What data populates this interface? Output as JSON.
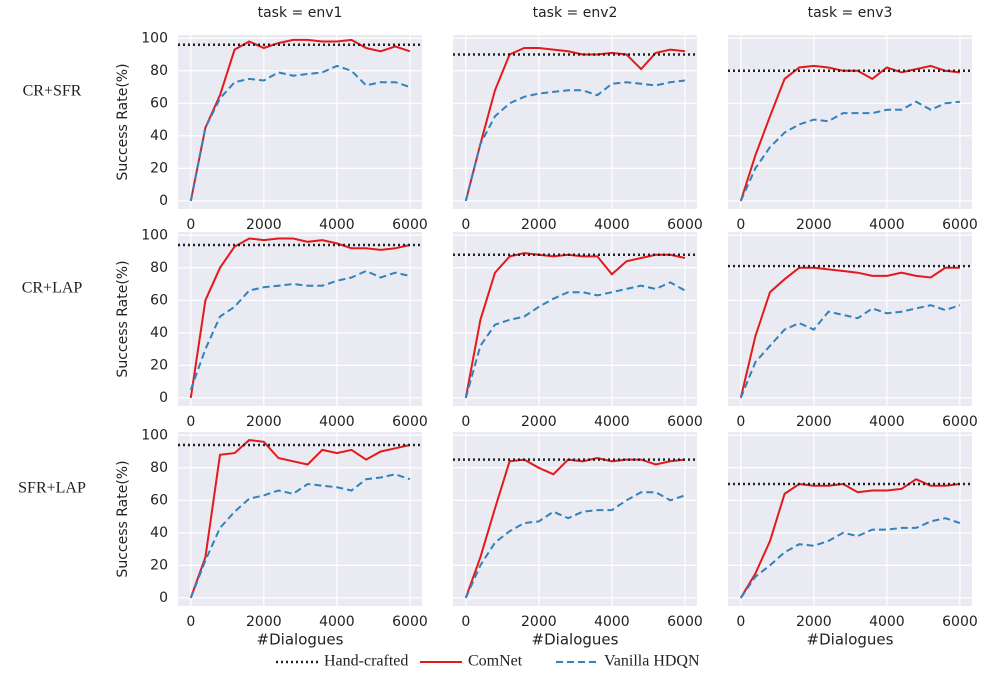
{
  "chart_data": [
    {
      "type": "line",
      "title": "task = env1",
      "row_label": "CR+SFR",
      "ylabel": "Success Rate(%)",
      "yticklabels": true,
      "x": [
        0,
        400,
        800,
        1200,
        1600,
        2000,
        2400,
        2800,
        3200,
        3600,
        4000,
        4400,
        4800,
        5200,
        5600,
        6000
      ],
      "hline": {
        "name": "Hand-crafted",
        "color": "#222222",
        "value": 96
      },
      "series": [
        {
          "name": "ComNet",
          "color": "#e31a1c",
          "linestyle": "solid",
          "values": [
            0,
            45,
            65,
            93,
            98,
            94,
            97,
            99,
            99,
            98,
            98,
            99,
            94,
            92,
            95,
            92
          ]
        },
        {
          "name": "Vanilla HDQN",
          "color": "#3182bd",
          "linestyle": "dashed",
          "values": [
            0,
            45,
            63,
            73,
            75,
            74,
            79,
            77,
            78,
            79,
            83,
            80,
            71,
            73,
            73,
            70
          ]
        }
      ],
      "xlim": [
        -350,
        6330
      ],
      "ylim": [
        -5,
        102
      ],
      "xticks": [
        0,
        2000,
        4000,
        6000
      ],
      "yticks": [
        0,
        20,
        40,
        60,
        80,
        100
      ],
      "grid": true
    },
    {
      "type": "line",
      "title": "task = env2",
      "yticklabels": false,
      "x": [
        0,
        400,
        800,
        1200,
        1600,
        2000,
        2400,
        2800,
        3200,
        3600,
        4000,
        4400,
        4800,
        5200,
        5600,
        6000
      ],
      "hline": {
        "name": "Hand-crafted",
        "color": "#222222",
        "value": 90
      },
      "series": [
        {
          "name": "ComNet",
          "color": "#e31a1c",
          "linestyle": "solid",
          "values": [
            0,
            35,
            68,
            90,
            94,
            94,
            93,
            92,
            90,
            90,
            91,
            90,
            81,
            91,
            93,
            92
          ]
        },
        {
          "name": "Vanilla HDQN",
          "color": "#3182bd",
          "linestyle": "dashed",
          "values": [
            0,
            35,
            52,
            60,
            64,
            66,
            67,
            68,
            68,
            65,
            72,
            73,
            72,
            71,
            73,
            74
          ]
        }
      ],
      "xlim": [
        -350,
        6330
      ],
      "ylim": [
        -5,
        102
      ],
      "xticks": [
        0,
        2000,
        4000,
        6000
      ],
      "yticks": [
        0,
        20,
        40,
        60,
        80,
        100
      ],
      "grid": true
    },
    {
      "type": "line",
      "title": "task = env3",
      "yticklabels": false,
      "x": [
        0,
        400,
        800,
        1200,
        1600,
        2000,
        2400,
        2800,
        3200,
        3600,
        4000,
        4400,
        4800,
        5200,
        5600,
        6000
      ],
      "hline": {
        "name": "Hand-crafted",
        "color": "#222222",
        "value": 80
      },
      "series": [
        {
          "name": "ComNet",
          "color": "#e31a1c",
          "linestyle": "solid",
          "values": [
            0,
            28,
            52,
            75,
            82,
            83,
            82,
            80,
            80,
            75,
            82,
            79,
            81,
            83,
            80,
            79
          ]
        },
        {
          "name": "Vanilla HDQN",
          "color": "#3182bd",
          "linestyle": "dashed",
          "values": [
            0,
            20,
            33,
            42,
            47,
            50,
            49,
            54,
            54,
            54,
            56,
            56,
            61,
            56,
            60,
            61
          ]
        }
      ],
      "xlim": [
        -350,
        6330
      ],
      "ylim": [
        -5,
        102
      ],
      "xticks": [
        0,
        2000,
        4000,
        6000
      ],
      "yticks": [
        0,
        20,
        40,
        60,
        80,
        100
      ],
      "grid": true
    },
    {
      "type": "line",
      "row_label": "CR+LAP",
      "ylabel": "Success Rate(%)",
      "yticklabels": true,
      "x": [
        0,
        400,
        800,
        1200,
        1600,
        2000,
        2400,
        2800,
        3200,
        3600,
        4000,
        4400,
        4800,
        5200,
        5600,
        6000
      ],
      "hline": {
        "name": "Hand-crafted",
        "color": "#222222",
        "value": 94
      },
      "series": [
        {
          "name": "ComNet",
          "color": "#e31a1c",
          "linestyle": "solid",
          "values": [
            0,
            60,
            80,
            93,
            98,
            97,
            98,
            98,
            96,
            97,
            95,
            92,
            92,
            91,
            92,
            94
          ]
        },
        {
          "name": "Vanilla HDQN",
          "color": "#3182bd",
          "linestyle": "dashed",
          "values": [
            5,
            30,
            50,
            56,
            66,
            68,
            69,
            70,
            69,
            69,
            72,
            74,
            78,
            74,
            77,
            75
          ]
        }
      ],
      "xlim": [
        -350,
        6330
      ],
      "ylim": [
        -5,
        102
      ],
      "xticks": [
        0,
        2000,
        4000,
        6000
      ],
      "yticks": [
        0,
        20,
        40,
        60,
        80,
        100
      ],
      "grid": true
    },
    {
      "type": "line",
      "yticklabels": false,
      "x": [
        0,
        400,
        800,
        1200,
        1600,
        2000,
        2400,
        2800,
        3200,
        3600,
        4000,
        4400,
        4800,
        5200,
        5600,
        6000
      ],
      "hline": {
        "name": "Hand-crafted",
        "color": "#222222",
        "value": 88
      },
      "series": [
        {
          "name": "ComNet",
          "color": "#e31a1c",
          "linestyle": "solid",
          "values": [
            0,
            48,
            77,
            87,
            89,
            88,
            87,
            88,
            87,
            87,
            76,
            84,
            86,
            88,
            88,
            86
          ]
        },
        {
          "name": "Vanilla HDQN",
          "color": "#3182bd",
          "linestyle": "dashed",
          "values": [
            0,
            32,
            45,
            48,
            50,
            56,
            61,
            65,
            65,
            63,
            65,
            67,
            69,
            67,
            71,
            66
          ]
        }
      ],
      "xlim": [
        -350,
        6330
      ],
      "ylim": [
        -5,
        102
      ],
      "xticks": [
        0,
        2000,
        4000,
        6000
      ],
      "yticks": [
        0,
        20,
        40,
        60,
        80,
        100
      ],
      "grid": true
    },
    {
      "type": "line",
      "yticklabels": false,
      "x": [
        0,
        400,
        800,
        1200,
        1600,
        2000,
        2400,
        2800,
        3200,
        3600,
        4000,
        4400,
        4800,
        5200,
        5600,
        6000
      ],
      "hline": {
        "name": "Hand-crafted",
        "color": "#222222",
        "value": 81
      },
      "series": [
        {
          "name": "ComNet",
          "color": "#e31a1c",
          "linestyle": "solid",
          "values": [
            0,
            38,
            65,
            73,
            80,
            80,
            79,
            78,
            77,
            75,
            75,
            77,
            75,
            74,
            80,
            80
          ]
        },
        {
          "name": "Vanilla HDQN",
          "color": "#3182bd",
          "linestyle": "dashed",
          "values": [
            0,
            22,
            32,
            42,
            46,
            42,
            53,
            51,
            49,
            55,
            52,
            53,
            55,
            57,
            54,
            57
          ]
        }
      ],
      "xlim": [
        -350,
        6330
      ],
      "ylim": [
        -5,
        102
      ],
      "xticks": [
        0,
        2000,
        4000,
        6000
      ],
      "yticks": [
        0,
        20,
        40,
        60,
        80,
        100
      ],
      "grid": true
    },
    {
      "type": "line",
      "row_label": "SFR+LAP",
      "ylabel": "Success Rate(%)",
      "xlabel": "#Dialogues",
      "yticklabels": true,
      "x": [
        0,
        400,
        800,
        1200,
        1600,
        2000,
        2400,
        2800,
        3200,
        3600,
        4000,
        4400,
        4800,
        5200,
        5600,
        6000
      ],
      "hline": {
        "name": "Hand-crafted",
        "color": "#222222",
        "value": 94
      },
      "series": [
        {
          "name": "ComNet",
          "color": "#e31a1c",
          "linestyle": "solid",
          "values": [
            0,
            25,
            88,
            89,
            97,
            96,
            86,
            84,
            82,
            91,
            89,
            91,
            85,
            90,
            92,
            94
          ]
        },
        {
          "name": "Vanilla HDQN",
          "color": "#3182bd",
          "linestyle": "dashed",
          "values": [
            0,
            23,
            43,
            53,
            61,
            63,
            66,
            64,
            70,
            69,
            68,
            66,
            73,
            74,
            76,
            73
          ]
        }
      ],
      "xlim": [
        -350,
        6330
      ],
      "ylim": [
        -5,
        102
      ],
      "xticks": [
        0,
        2000,
        4000,
        6000
      ],
      "yticks": [
        0,
        20,
        40,
        60,
        80,
        100
      ],
      "grid": true
    },
    {
      "type": "line",
      "xlabel": "#Dialogues",
      "yticklabels": false,
      "x": [
        0,
        400,
        800,
        1200,
        1600,
        2000,
        2400,
        2800,
        3200,
        3600,
        4000,
        4400,
        4800,
        5200,
        5600,
        6000
      ],
      "hline": {
        "name": "Hand-crafted",
        "color": "#222222",
        "value": 85
      },
      "series": [
        {
          "name": "ComNet",
          "color": "#e31a1c",
          "linestyle": "solid",
          "values": [
            0,
            25,
            55,
            84,
            85,
            80,
            76,
            85,
            84,
            86,
            84,
            85,
            85,
            82,
            84,
            85
          ]
        },
        {
          "name": "Vanilla HDQN",
          "color": "#3182bd",
          "linestyle": "dashed",
          "values": [
            0,
            20,
            34,
            41,
            46,
            47,
            53,
            49,
            53,
            54,
            54,
            60,
            65,
            65,
            60,
            63
          ]
        }
      ],
      "xlim": [
        -350,
        6330
      ],
      "ylim": [
        -5,
        102
      ],
      "xticks": [
        0,
        2000,
        4000,
        6000
      ],
      "yticks": [
        0,
        20,
        40,
        60,
        80,
        100
      ],
      "grid": true
    },
    {
      "type": "line",
      "xlabel": "#Dialogues",
      "yticklabels": false,
      "x": [
        0,
        400,
        800,
        1200,
        1600,
        2000,
        2400,
        2800,
        3200,
        3600,
        4000,
        4400,
        4800,
        5200,
        5600,
        6000
      ],
      "hline": {
        "name": "Hand-crafted",
        "color": "#222222",
        "value": 70
      },
      "series": [
        {
          "name": "ComNet",
          "color": "#e31a1c",
          "linestyle": "solid",
          "values": [
            0,
            15,
            35,
            64,
            70,
            69,
            69,
            70,
            65,
            66,
            66,
            67,
            73,
            69,
            69,
            70
          ]
        },
        {
          "name": "Vanilla HDQN",
          "color": "#3182bd",
          "linestyle": "dashed",
          "values": [
            0,
            13,
            20,
            28,
            33,
            32,
            35,
            40,
            38,
            42,
            42,
            43,
            43,
            47,
            49,
            46
          ]
        }
      ],
      "xlim": [
        -350,
        6330
      ],
      "ylim": [
        -5,
        102
      ],
      "xticks": [
        0,
        2000,
        4000,
        6000
      ],
      "yticks": [
        0,
        20,
        40,
        60,
        80,
        100
      ],
      "grid": true
    }
  ]
}
